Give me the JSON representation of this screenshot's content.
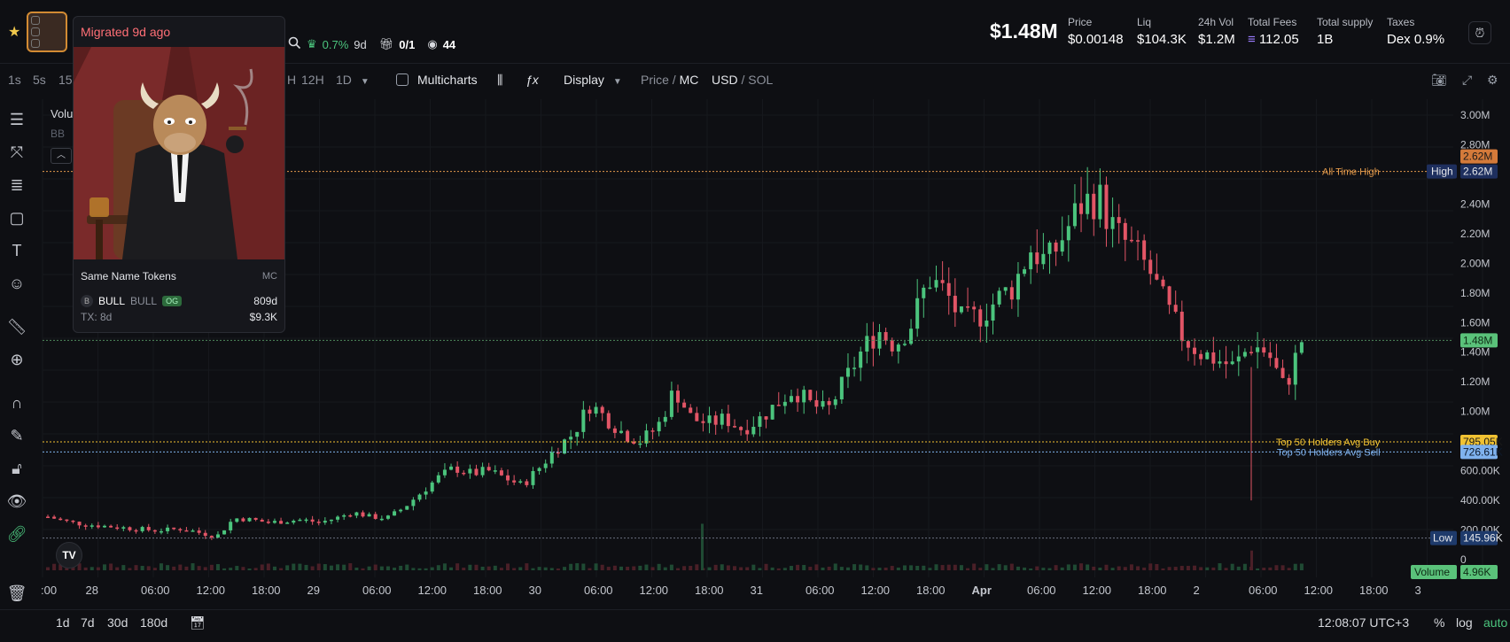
{
  "header": {
    "hover_meta": {
      "change_pct": "0.7%",
      "change_age": "9d",
      "ratio": "0/1",
      "watchers": "44"
    },
    "market_cap": "$1.48M",
    "stats": [
      {
        "label": "Price",
        "value": "$0.00148"
      },
      {
        "label": "Liq",
        "value": "$104.3K"
      },
      {
        "label": "24h Vol",
        "value": "$1.2M"
      },
      {
        "label": "Total Fees",
        "value": "112.05"
      },
      {
        "label": "Total supply",
        "value": "1B"
      },
      {
        "label": "Taxes",
        "value": "Dex",
        "value2": "0.9%"
      }
    ]
  },
  "toolbar": {
    "intervals": [
      "1s",
      "5s",
      "15",
      "H",
      "12H",
      "1D"
    ],
    "multicharts": "Multicharts",
    "display": "Display",
    "price_label": "Price",
    "slash1": " / ",
    "mc_label": "MC",
    "usd_label": "USD",
    "slash2": " / ",
    "sol_label": "SOL"
  },
  "legend": {
    "volume_trunc": "Volu",
    "bb_trunc": "BB"
  },
  "popup": {
    "migrated": "Migrated 9d ago",
    "same_name": "Same Name Tokens",
    "mc": "MC",
    "token_letter": "B",
    "token_name": "BULL",
    "token_ticker": "BULL",
    "og": "OG",
    "age": "809d",
    "tx": "TX: 8d",
    "mc_value": "$9.3K"
  },
  "chart_data": {
    "type": "candlestick",
    "y_axis_labels": [
      "3.00M",
      "2.80M",
      "2.40M",
      "2.20M",
      "2.00M",
      "1.80M",
      "1.60M",
      "1.40M",
      "1.20M",
      "1.00M",
      "600.00K",
      "400.00K",
      "200.00K",
      "0"
    ],
    "x_axis_labels": [
      ":00",
      "28",
      "06:00",
      "12:00",
      "18:00",
      "29",
      "06:00",
      "12:00",
      "18:00",
      "30",
      "06:00",
      "12:00",
      "18:00",
      "31",
      "06:00",
      "12:00",
      "18:00",
      "Apr",
      "06:00",
      "12:00",
      "18:00",
      "2",
      "06:00",
      "12:00",
      "18:00",
      "3"
    ],
    "price_tags": {
      "ath_top": "2.62M",
      "high": "2.62M",
      "current": "1.48M",
      "top50_buy": "795.05K",
      "top50_sell": "726.61K",
      "low": "145.96K",
      "volume": "4.96K"
    },
    "tag_labels": {
      "high": "High",
      "low": "Low",
      "volume": "Volume"
    },
    "annotations": {
      "ath": "All Time High",
      "top50_buy": "Top 50 Holders Avg Buy",
      "top50_sell": "Top 50 Holders Avg Sell"
    },
    "levels": {
      "ath": 2.62,
      "current": 1.48,
      "top50_buy": 0.795,
      "top50_sell": 0.727,
      "low": 0.146
    },
    "ylim": [
      0,
      3.0
    ],
    "unit": "M",
    "path": [
      0.29,
      0.26,
      0.24,
      0.23,
      0.22,
      0.21,
      0.2,
      0.2,
      0.21,
      0.18,
      0.16,
      0.28,
      0.27,
      0.25,
      0.26,
      0.27,
      0.25,
      0.28,
      0.32,
      0.29,
      0.28,
      0.35,
      0.45,
      0.55,
      0.62,
      0.58,
      0.6,
      0.55,
      0.5,
      0.62,
      0.75,
      0.85,
      1.05,
      0.95,
      0.85,
      0.8,
      0.9,
      1.15,
      0.95,
      0.92,
      0.95,
      0.88,
      0.95,
      1.05,
      1.15,
      1.05,
      1.0,
      1.2,
      1.4,
      1.55,
      1.45,
      1.6,
      1.9,
      1.8,
      1.6,
      1.65,
      1.75,
      1.85,
      2.1,
      2.0,
      2.2,
      2.4,
      2.45,
      2.2,
      2.1,
      1.95,
      1.7,
      1.5,
      1.4,
      1.35,
      1.3,
      1.45,
      1.4,
      1.15,
      1.48
    ],
    "volume_spikes": {
      "mid": 0.53,
      "late": 0.17
    }
  },
  "footer": {
    "ranges": [
      "1d",
      "7d",
      "30d",
      "180d"
    ],
    "time": "12:08:07 UTC+3",
    "percent": "%",
    "log": "log",
    "auto": "auto"
  },
  "tv_logo": "TV",
  "colors": {
    "up": "#4bc47d",
    "down": "#e25566",
    "background": "#0e0f13",
    "ath_line": "#e39a4b",
    "current_tag": "#5ac27a",
    "buy_tag": "#f1c232",
    "sell_tag": "#7fb2ee",
    "low_tag": "#1e3a6b"
  }
}
